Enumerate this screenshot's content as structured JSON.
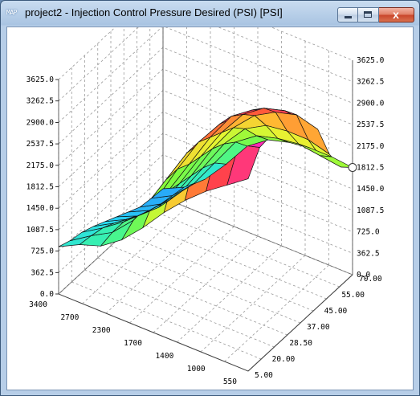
{
  "window": {
    "icon": "MAP",
    "title": "project2 - Injection Control Pressure Desired (PSI) [PSI]",
    "close_glyph": "x"
  },
  "chart_data": {
    "type": "surface3d",
    "title": "",
    "z_ticks": [
      "0.0",
      "362.5",
      "725.0",
      "1087.5",
      "1450.0",
      "1812.5",
      "2175.0",
      "2537.5",
      "2900.0",
      "3262.5",
      "3625.0"
    ],
    "left_z_ticks": [
      "0.0",
      "362.5",
      "725.0",
      "1087.5",
      "1450.0",
      "1812.5",
      "2175.0",
      "2537.5",
      "2900.0",
      "3262.5",
      "3625.0"
    ],
    "rpm_ticks": [
      "3400",
      "2700",
      "2300",
      "1700",
      "1400",
      "1000",
      "550"
    ],
    "load_ticks": [
      "5.00",
      "20.00",
      "28.50",
      "37.00",
      "45.00",
      "55.00",
      "70.00"
    ],
    "zlim": [
      0,
      3625
    ],
    "grid": true,
    "marker_value": "1812.5",
    "rows": [
      [
        800,
        980,
        1100,
        1350,
        1700,
        2100,
        2450,
        2750,
        3000,
        3250
      ],
      [
        720,
        950,
        1150,
        1500,
        2000,
        2600,
        3050,
        3350,
        3500,
        3600
      ],
      [
        680,
        900,
        1150,
        1550,
        2150,
        2750,
        3150,
        3450,
        3600,
        3625
      ],
      [
        600,
        800,
        1050,
        1500,
        2150,
        2750,
        3200,
        3500,
        3625,
        3600
      ],
      [
        500,
        680,
        950,
        1450,
        2050,
        2650,
        3150,
        3400,
        3550,
        3500
      ],
      [
        400,
        560,
        850,
        1400,
        2000,
        2550,
        3000,
        3250,
        3350,
        3300
      ],
      [
        300,
        470,
        800,
        1350,
        1950,
        2450,
        2800,
        3000,
        3100,
        3000
      ],
      [
        200,
        400,
        760,
        1300,
        1850,
        2250,
        2450,
        2500,
        2500,
        2400
      ],
      [
        170,
        360,
        700,
        1200,
        1700,
        1950,
        2050,
        2100,
        2050,
        2000
      ],
      [
        150,
        320,
        600,
        1000,
        1450,
        1700,
        1800,
        1850,
        1850,
        1812
      ]
    ]
  }
}
